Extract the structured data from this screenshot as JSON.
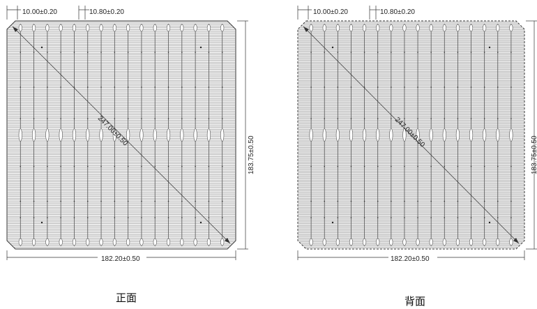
{
  "panels": [
    {
      "id": "front",
      "caption": "正面",
      "dims": {
        "busbar_pitch": "10.00±0.20",
        "finger_pitch": "10.80±0.20",
        "diagonal": "247.00±0.50",
        "height": "183.75±0.50",
        "width": "182.20±0.50"
      },
      "busbar_count": 16,
      "colors": {
        "grid": "#8a8a8a",
        "fill": "#ededed",
        "line": "#333333"
      }
    },
    {
      "id": "back",
      "caption": "背面",
      "dims": {
        "busbar_pitch": "10.00±0.20",
        "finger_pitch": "10.80±0.20",
        "diagonal": "247.00±0.50",
        "height": "183.75±0.50",
        "width": "182.20±0.50"
      },
      "busbar_count": 16,
      "colors": {
        "grid": "#9a9a9a",
        "fill": "#e4e4e4",
        "line": "#333333"
      }
    }
  ]
}
